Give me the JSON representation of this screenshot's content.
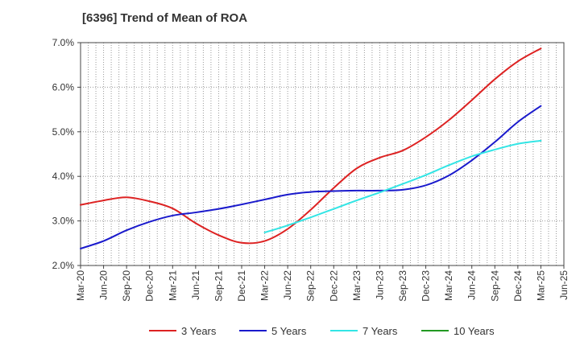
{
  "chart_data": {
    "type": "line",
    "title": "[6396]  Trend of Mean of ROA",
    "xlabel": "",
    "ylabel": "",
    "x_ticks": [
      "Mar-20",
      "Jun-20",
      "Sep-20",
      "Dec-20",
      "Mar-21",
      "Jun-21",
      "Sep-21",
      "Dec-21",
      "Mar-22",
      "Jun-22",
      "Sep-22",
      "Dec-22",
      "Mar-23",
      "Jun-23",
      "Sep-23",
      "Dec-23",
      "Mar-24",
      "Jun-24",
      "Sep-24",
      "Dec-24",
      "Mar-25",
      "Jun-25"
    ],
    "y_ticks": [
      "2.0%",
      "3.0%",
      "4.0%",
      "5.0%",
      "6.0%",
      "7.0%"
    ],
    "ylim": [
      2.0,
      7.0
    ],
    "grid": true,
    "legend_position": "bottom",
    "series": [
      {
        "name": "3 Years",
        "color": "#dd2222",
        "x": [
          "Mar-20",
          "Jun-20",
          "Sep-20",
          "Dec-20",
          "Mar-21",
          "Jun-21",
          "Sep-21",
          "Dec-21",
          "Mar-22",
          "Jun-22",
          "Sep-22",
          "Dec-22",
          "Mar-23",
          "Jun-23",
          "Sep-23",
          "Dec-23",
          "Mar-24",
          "Jun-24",
          "Sep-24",
          "Dec-24",
          "Mar-25"
        ],
        "values": [
          3.36,
          3.46,
          3.53,
          3.44,
          3.28,
          2.95,
          2.68,
          2.51,
          2.55,
          2.82,
          3.25,
          3.74,
          4.18,
          4.42,
          4.58,
          4.88,
          5.26,
          5.71,
          6.18,
          6.58,
          6.87
        ]
      },
      {
        "name": "5 Years",
        "color": "#1a1acc",
        "x": [
          "Mar-20",
          "Jun-20",
          "Sep-20",
          "Dec-20",
          "Mar-21",
          "Jun-21",
          "Sep-21",
          "Dec-21",
          "Mar-22",
          "Jun-22",
          "Sep-22",
          "Dec-22",
          "Mar-23",
          "Jun-23",
          "Sep-23",
          "Dec-23",
          "Mar-24",
          "Jun-24",
          "Sep-24",
          "Dec-24",
          "Mar-25"
        ],
        "values": [
          2.38,
          2.55,
          2.79,
          2.98,
          3.12,
          3.19,
          3.27,
          3.37,
          3.48,
          3.59,
          3.65,
          3.67,
          3.68,
          3.68,
          3.7,
          3.8,
          4.02,
          4.36,
          4.77,
          5.22,
          5.58
        ]
      },
      {
        "name": "7 Years",
        "color": "#33e5e5",
        "x": [
          "Mar-22",
          "Jun-22",
          "Sep-22",
          "Dec-22",
          "Mar-23",
          "Jun-23",
          "Sep-23",
          "Dec-23",
          "Mar-24",
          "Jun-24",
          "Sep-24",
          "Dec-24",
          "Mar-25"
        ],
        "values": [
          2.74,
          2.9,
          3.08,
          3.27,
          3.46,
          3.64,
          3.83,
          4.03,
          4.25,
          4.45,
          4.6,
          4.73,
          4.8
        ]
      },
      {
        "name": "10 Years",
        "color": "#229922",
        "x": [],
        "values": []
      }
    ]
  }
}
